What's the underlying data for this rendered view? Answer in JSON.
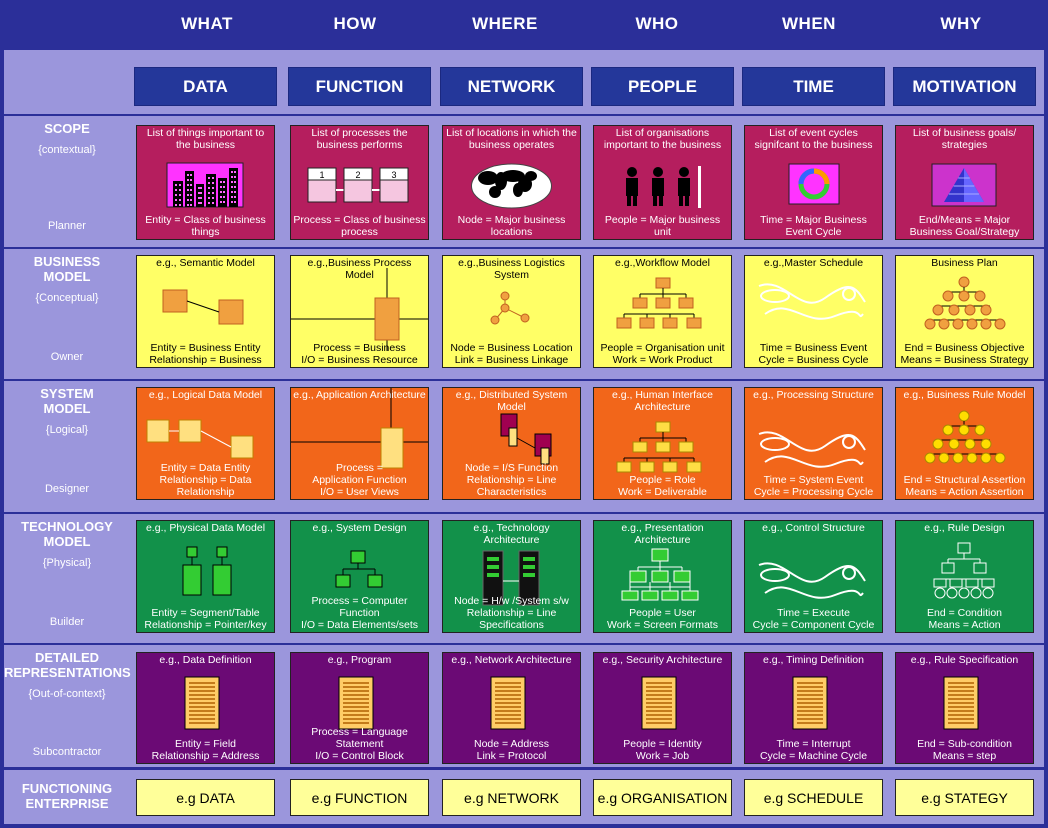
{
  "questions": [
    "WHAT",
    "HOW",
    "WHERE",
    "WHO",
    "WHEN",
    "WHY"
  ],
  "columns": [
    "DATA",
    "FUNCTION",
    "NETWORK",
    "PEOPLE",
    "TIME",
    "MOTIVATION"
  ],
  "rows": [
    {
      "title": [
        "SCOPE"
      ],
      "subtitle": "{contextual}",
      "role": "Planner",
      "bg": "#b51e5e",
      "text": "dark",
      "cells": [
        {
          "top": "List of things important to the business",
          "bottom": "Entity = Class of business things",
          "icon": "city-icon"
        },
        {
          "top": "List of processes the business performs",
          "bottom": "Process = Class of business process",
          "icon": "process-chain-icon",
          "steps": [
            "1",
            "2",
            "3"
          ]
        },
        {
          "top": "List of locations in which the business operates",
          "bottom": "Node = Major business locations",
          "icon": "world-map-icon"
        },
        {
          "top": "List of organisations important to the business",
          "bottom": "People = Major business unit",
          "icon": "people-icon"
        },
        {
          "top": "List of event cycles signifcant to the business",
          "bottom": "Time = Major Business Event Cycle",
          "icon": "cycle-icon"
        },
        {
          "top": "List of business goals/ strategies",
          "bottom": "End/Means = Major Business Goal/Strategy",
          "icon": "pyramid-icon"
        }
      ]
    },
    {
      "title": [
        "BUSINESS",
        "MODEL"
      ],
      "subtitle": "{Conceptual}",
      "role": "Owner",
      "bg": "#ffff66",
      "text": "light",
      "cells": [
        {
          "top": "e.g., Semantic Model",
          "bottom": "Entity = Business Entity\nRelationship = Business",
          "icon": "entity-diagram-icon"
        },
        {
          "top": "e.g.,Business Process Model",
          "bottom": "Process = Business\nI/O = Business Resource",
          "icon": "process-box-icon"
        },
        {
          "top": "e.g.,Business Logistics System",
          "bottom": "Node = Business Location\nLink = Business Linkage",
          "icon": "network-nodes-icon"
        },
        {
          "top": "e.g.,Workflow Model",
          "bottom": "People = Organisation unit\nWork = Work Product",
          "icon": "org-chart-icon"
        },
        {
          "top": "e.g.,Master Schedule",
          "bottom": "Time = Business Event\nCycle = Business Cycle",
          "icon": "schedule-curve-icon"
        },
        {
          "top": "Business Plan",
          "bottom": "End = Business Objective\nMeans = Business Strategy",
          "icon": "hierarchy-icon"
        }
      ]
    },
    {
      "title": [
        "SYSTEM",
        "MODEL"
      ],
      "subtitle": "{Logical}",
      "role": "Designer",
      "bg": "#f2661a",
      "text": "dark",
      "cells": [
        {
          "top": "e.g., Logical Data Model",
          "bottom": "Entity = Data Entity\nRelationship = Data Relationship",
          "icon": "logical-data-icon"
        },
        {
          "top": "e.g., Application Architecture",
          "bottom": "Process =\nApplication Function\nI/O = User Views",
          "icon": "application-box-icon"
        },
        {
          "top": "e.g., Distributed System Model",
          "bottom": "Node = I/S Function\nRelationship = Line Characteristics",
          "icon": "distributed-system-icon"
        },
        {
          "top": "e.g., Human Interface Architecture",
          "bottom": "People = Role\nWork = Deliverable",
          "icon": "org-chart-icon"
        },
        {
          "top": "e.g., Processing Structure",
          "bottom": "Time = System Event\nCycle = Processing Cycle",
          "icon": "schedule-curve-icon"
        },
        {
          "top": "e.g., Business Rule Model",
          "bottom": "End = Structural Assertion\nMeans = Action Assertion",
          "icon": "hierarchy-icon"
        }
      ]
    },
    {
      "title": [
        "TECHNOLOGY",
        "MODEL"
      ],
      "subtitle": "{Physical}",
      "role": "Builder",
      "bg": "#12914a",
      "text": "dark",
      "cells": [
        {
          "top": "e.g., Physical Data Model",
          "bottom": "Entity = Segment/Table\nRelationship = Pointer/key",
          "icon": "physical-data-icon"
        },
        {
          "top": "e.g., System Design",
          "bottom": "Process = Computer Function\nI/O = Data Elements/sets",
          "icon": "system-design-icon"
        },
        {
          "top": "e.g., Technology Architecture",
          "bottom": "Node = H/w /System s/w\nRelationship = Line Specifications",
          "icon": "server-icon"
        },
        {
          "top": "e.g., Presentation Architecture",
          "bottom": "People = User\nWork = Screen Formats",
          "icon": "screen-tree-icon"
        },
        {
          "top": "e.g., Control Structure",
          "bottom": "Time = Execute\nCycle = Component Cycle",
          "icon": "schedule-curve-icon"
        },
        {
          "top": "e.g., Rule Design",
          "bottom": "End = Condition\nMeans = Action",
          "icon": "rule-tree-icon"
        }
      ]
    },
    {
      "title": [
        "DETAILED",
        "REPRESENTATIONS"
      ],
      "subtitle": "{Out-of-context}",
      "role": "Subcontractor",
      "bg": "#6b0a75",
      "text": "dark",
      "cells": [
        {
          "top": "e.g., Data Definition",
          "bottom": "Entity = Field\nRelationship = Address",
          "icon": "document-icon"
        },
        {
          "top": "e.g., Program",
          "bottom": "Process = Language Statement\nI/O = Control Block",
          "icon": "document-icon"
        },
        {
          "top": "e.g., Network Architecture",
          "bottom": "Node = Address\nLink = Protocol",
          "icon": "document-icon"
        },
        {
          "top": "e.g., Security Architecture",
          "bottom": "People = Identity\nWork = Job",
          "icon": "document-icon"
        },
        {
          "top": "e.g., Timing Definition",
          "bottom": "Time = Interrupt\nCycle = Machine Cycle",
          "icon": "document-icon"
        },
        {
          "top": "e.g., Rule Specification",
          "bottom": "End = Sub-condition\nMeans = step",
          "icon": "document-icon"
        }
      ]
    }
  ],
  "functioning": {
    "title": [
      "FUNCTIONING",
      "ENTERPRISE"
    ],
    "cells": [
      "e.g DATA",
      "e.g FUNCTION",
      "e.g NETWORK",
      "e.g ORGANISATION",
      "e.g SCHEDULE",
      "e.g STATEGY"
    ]
  },
  "colors": {
    "frame": "#2b2f99",
    "band": "#9b96dc",
    "header": "#24379a",
    "functioning": "#ffff99"
  }
}
